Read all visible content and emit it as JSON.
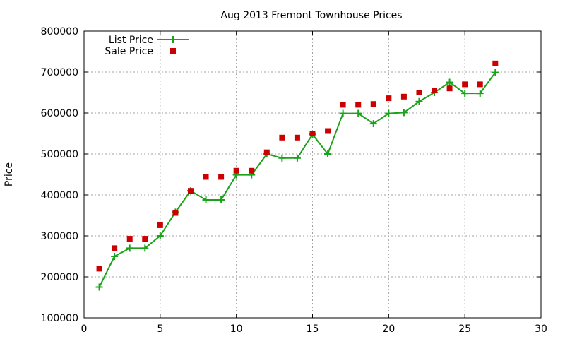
{
  "chart_data": {
    "type": "line",
    "title": "Aug 2013 Fremont Townhouse Prices",
    "xlabel": "",
    "ylabel": "Price",
    "xlim": [
      0,
      30
    ],
    "ylim": [
      100000,
      800000
    ],
    "xticks": [
      0,
      5,
      10,
      15,
      20,
      25,
      30
    ],
    "yticks": [
      100000,
      200000,
      300000,
      400000,
      500000,
      600000,
      700000,
      800000
    ],
    "grid": true,
    "legend_position": "top-left",
    "series": [
      {
        "name": "List Price",
        "style": "line-plus",
        "color": "#1aa31a",
        "x": [
          1,
          2,
          3,
          4,
          5,
          6,
          7,
          8,
          9,
          10,
          11,
          12,
          13,
          14,
          15,
          16,
          17,
          18,
          19,
          20,
          21,
          22,
          23,
          24,
          25,
          26,
          27
        ],
        "y": [
          175000,
          250000,
          270000,
          270000,
          300000,
          358000,
          410000,
          388000,
          388000,
          449000,
          449000,
          500000,
          490000,
          490000,
          548000,
          500000,
          599000,
          599000,
          574000,
          599000,
          601000,
          628000,
          650000,
          675000,
          648000,
          648000,
          699000
        ]
      },
      {
        "name": "Sale Price",
        "style": "square-marker",
        "color": "#cc0000",
        "x": [
          1,
          2,
          3,
          4,
          5,
          6,
          7,
          8,
          9,
          10,
          11,
          12,
          13,
          14,
          15,
          16,
          17,
          18,
          19,
          20,
          21,
          22,
          23,
          24,
          25,
          26,
          27
        ],
        "y": [
          220000,
          270000,
          293000,
          293000,
          326000,
          356000,
          410000,
          444000,
          444000,
          459000,
          459000,
          504000,
          540000,
          540000,
          550000,
          556000,
          620000,
          620000,
          622000,
          636000,
          640000,
          650000,
          655000,
          660000,
          670000,
          670000,
          721000
        ]
      }
    ]
  }
}
